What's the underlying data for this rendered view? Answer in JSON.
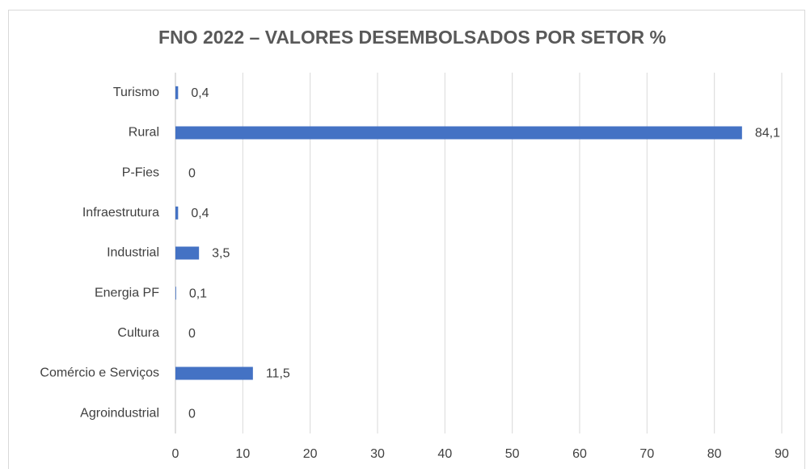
{
  "chart_data": {
    "type": "bar",
    "orientation": "horizontal",
    "title": "FNO 2022 – VALORES DESEMBOLSADOS POR SETOR %",
    "categories": [
      "Turismo",
      "Rural",
      "P-Fies",
      "Infraestrutura",
      "Industrial",
      "Energia PF",
      "Cultura",
      "Comércio e Serviços",
      "Agroindustrial"
    ],
    "values": [
      0.4,
      84.1,
      0,
      0.4,
      3.5,
      0.1,
      0,
      11.5,
      0
    ],
    "value_labels": [
      "0,4",
      "84,1",
      "0",
      "0,4",
      "3,5",
      "0,1",
      "0",
      "11,5",
      "0"
    ],
    "color": "#4472c4",
    "xlim": [
      0,
      90
    ],
    "xticks": [
      0,
      10,
      20,
      30,
      40,
      50,
      60,
      70,
      80,
      90
    ],
    "grid": true
  }
}
